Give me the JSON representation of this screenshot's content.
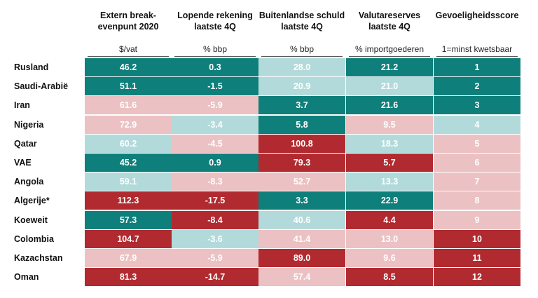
{
  "chart_data": {
    "type": "table",
    "columns": [
      {
        "header": "Extern break-\nevenpunt 2020",
        "unit": "$/vat"
      },
      {
        "header": "Lopende rekening\nlaatste 4Q",
        "unit": "% bbp"
      },
      {
        "header": "Buitenlandse schuld\nlaatste 4Q",
        "unit": "% bbp"
      },
      {
        "header": "Valutareserves\nlaatste 4Q",
        "unit": "% importgoederen"
      },
      {
        "header": "Gevoeligheidsscore",
        "unit": "1=minst kwetsbaar"
      }
    ],
    "rows": [
      {
        "country": "Rusland",
        "values": [
          "46.2",
          "0.3",
          "28.0",
          "21.2",
          "1"
        ],
        "levels": [
          0,
          0,
          1,
          0,
          0
        ]
      },
      {
        "country": "Saudi-Arabië",
        "values": [
          "51.1",
          "-1.5",
          "20.9",
          "21.0",
          "2"
        ],
        "levels": [
          0,
          0,
          1,
          1,
          0
        ]
      },
      {
        "country": "Iran",
        "values": [
          "61.6",
          "-5.9",
          "3.7",
          "21.6",
          "3"
        ],
        "levels": [
          2,
          2,
          0,
          0,
          0
        ]
      },
      {
        "country": "Nigeria",
        "values": [
          "72.9",
          "-3.4",
          "5.8",
          "9.5",
          "4"
        ],
        "levels": [
          2,
          1,
          0,
          2,
          1
        ]
      },
      {
        "country": "Qatar",
        "values": [
          "60.2",
          "-4.5",
          "100.8",
          "18.3",
          "5"
        ],
        "levels": [
          1,
          2,
          3,
          1,
          2
        ]
      },
      {
        "country": "VAE",
        "values": [
          "45.2",
          "0.9",
          "79.3",
          "5.7",
          "6"
        ],
        "levels": [
          0,
          0,
          3,
          3,
          2
        ]
      },
      {
        "country": "Angola",
        "values": [
          "59.1",
          "-8.3",
          "52.7",
          "13.3",
          "7"
        ],
        "levels": [
          1,
          2,
          2,
          1,
          2
        ]
      },
      {
        "country": "Algerije*",
        "values": [
          "112.3",
          "-17.5",
          "3.3",
          "22.9",
          "8"
        ],
        "levels": [
          3,
          3,
          0,
          0,
          2
        ]
      },
      {
        "country": "Koeweit",
        "values": [
          "57.3",
          "-8.4",
          "40.6",
          "4.4",
          "9"
        ],
        "levels": [
          0,
          3,
          1,
          3,
          2
        ]
      },
      {
        "country": "Colombia",
        "values": [
          "104.7",
          "-3.6",
          "41.4",
          "13.0",
          "10"
        ],
        "levels": [
          3,
          1,
          2,
          2,
          3
        ]
      },
      {
        "country": "Kazachstan",
        "values": [
          "67.9",
          "-5.9",
          "89.0",
          "9.6",
          "11"
        ],
        "levels": [
          2,
          2,
          3,
          2,
          3
        ]
      },
      {
        "country": "Oman",
        "values": [
          "81.3",
          "-14.7",
          "57.4",
          "8.5",
          "12"
        ],
        "levels": [
          3,
          3,
          2,
          3,
          3
        ]
      }
    ],
    "level_colors": [
      "#0e7f7a",
      "#b3dadb",
      "#ecc1c3",
      "#b12a2f"
    ],
    "level_text_colors": [
      "#ffffff",
      "#ffffff",
      "#ffffff",
      "#ffffff"
    ]
  }
}
